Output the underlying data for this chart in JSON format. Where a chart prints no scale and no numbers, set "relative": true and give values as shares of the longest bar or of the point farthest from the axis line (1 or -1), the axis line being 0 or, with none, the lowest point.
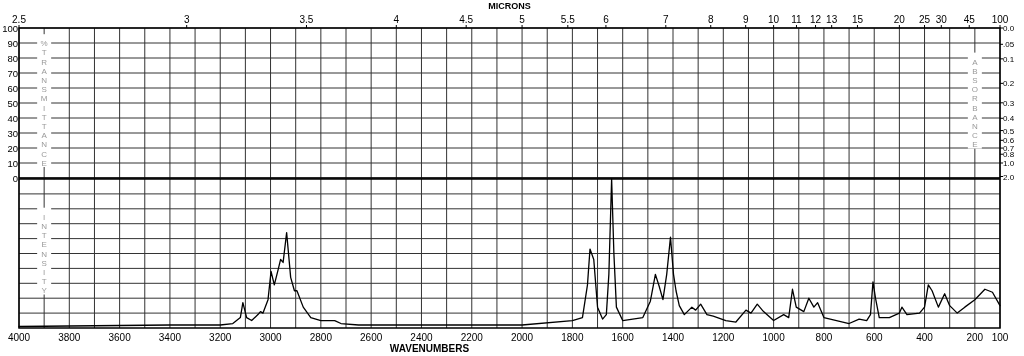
{
  "chart_data": [
    {
      "type": "line",
      "x2label": "MICRONS",
      "ylabel": "%TRANSMITTANCE",
      "y2label": "ABSORBANCE",
      "grid": true,
      "tick_labels": "y",
      "xlim": [
        4000,
        100
      ],
      "xticks": [
        {
          "value": 4000,
          "label": null
        },
        {
          "value": 3900,
          "label": null
        },
        {
          "value": 3800,
          "label": null
        },
        {
          "value": 3700,
          "label": null
        },
        {
          "value": 3600,
          "label": null
        },
        {
          "value": 3500,
          "label": null
        },
        {
          "value": 3400,
          "label": null
        },
        {
          "value": 3300,
          "label": null
        },
        {
          "value": 3200,
          "label": null
        },
        {
          "value": 3100,
          "label": null
        },
        {
          "value": 3000,
          "label": null
        },
        {
          "value": 2900,
          "label": null
        },
        {
          "value": 2800,
          "label": null
        },
        {
          "value": 2700,
          "label": null
        },
        {
          "value": 2600,
          "label": null
        },
        {
          "value": 2500,
          "label": null
        },
        {
          "value": 2400,
          "label": null
        },
        {
          "value": 2300,
          "label": null
        },
        {
          "value": 2200,
          "label": null
        },
        {
          "value": 2100,
          "label": null
        },
        {
          "value": 2000,
          "label": null
        },
        {
          "value": 1900,
          "label": null
        },
        {
          "value": 1800,
          "label": null
        },
        {
          "value": 1700,
          "label": null
        },
        {
          "value": 1600,
          "label": null
        },
        {
          "value": 1500,
          "label": null
        },
        {
          "value": 1400,
          "label": null
        },
        {
          "value": 1300,
          "label": null
        },
        {
          "value": 1200,
          "label": null
        },
        {
          "value": 1100,
          "label": null
        },
        {
          "value": 1000,
          "label": null
        },
        {
          "value": 900,
          "label": null
        },
        {
          "value": 800,
          "label": null
        },
        {
          "value": 700,
          "label": null
        },
        {
          "value": 600,
          "label": null
        },
        {
          "value": 500,
          "label": null
        },
        {
          "value": 400,
          "label": null
        },
        {
          "value": 300,
          "label": null
        },
        {
          "value": 200,
          "label": null
        },
        {
          "value": 100,
          "label": null
        }
      ],
      "annotations": [
        "2.5",
        "3",
        "3.5",
        "4",
        "4.5",
        "5",
        "5.5",
        "6",
        "7",
        "8",
        "9",
        "10",
        "11",
        "12",
        "13",
        "15",
        "20",
        "25",
        "30",
        "45",
        "100",
        "0.0",
        ".05",
        "0.1",
        "0.2",
        "0.3",
        "0.4",
        "0.5",
        "0.6",
        "0.7",
        "0.8",
        "1.0",
        "2.0"
      ],
      "ylim": [
        0,
        100
      ],
      "yticks": [
        0,
        10,
        20,
        30,
        40,
        50,
        60,
        70,
        80,
        90,
        100
      ]
    },
    {
      "type": "line",
      "relative": true,
      "xlabel": "WAVENUMBERS",
      "ylabel": "INTENSITY",
      "grid": true,
      "marker": "none",
      "xlim": [
        4000,
        100
      ],
      "xticks": [
        4000,
        {
          "value": 3900,
          "label": null
        },
        3800,
        {
          "value": 3700,
          "label": null
        },
        3600,
        {
          "value": 3500,
          "label": null
        },
        3400,
        {
          "value": 3300,
          "label": null
        },
        3200,
        {
          "value": 3100,
          "label": null
        },
        3000,
        {
          "value": 2900,
          "label": null
        },
        2800,
        {
          "value": 2700,
          "label": null
        },
        2600,
        {
          "value": 2500,
          "label": null
        },
        2400,
        {
          "value": 2300,
          "label": null
        },
        2200,
        {
          "value": 2100,
          "label": null
        },
        2000,
        {
          "value": 1900,
          "label": null
        },
        1800,
        {
          "value": 1700,
          "label": null
        },
        1600,
        {
          "value": 1500,
          "label": null
        },
        1400,
        {
          "value": 1300,
          "label": null
        },
        1200,
        {
          "value": 1100,
          "label": null
        },
        1000,
        {
          "value": 900,
          "label": null
        },
        800,
        {
          "value": 700,
          "label": null
        },
        600,
        {
          "value": 500,
          "label": null
        },
        400,
        {
          "value": 300,
          "label": null
        },
        200,
        100
      ],
      "series": [
        {
          "color": "#000000",
          "x": [
            4000,
            3400,
            3200,
            3150,
            3120,
            3110,
            3095,
            3075,
            3050,
            3040,
            3030,
            3010,
            2998,
            2985,
            2970,
            2960,
            2950,
            2936,
            2920,
            2905,
            2895,
            2870,
            2840,
            2800,
            2760,
            2745,
            2720,
            2650,
            2500,
            2400,
            2000,
            1800,
            1760,
            1740,
            1730,
            1715,
            1700,
            1680,
            1665,
            1655,
            1644,
            1635,
            1625,
            1600,
            1520,
            1490,
            1470,
            1455,
            1440,
            1425,
            1410,
            1398,
            1388,
            1375,
            1355,
            1325,
            1310,
            1290,
            1265,
            1240,
            1190,
            1150,
            1110,
            1090,
            1065,
            1040,
            1000,
            960,
            940,
            925,
            910,
            880,
            860,
            840,
            825,
            800,
            750,
            700,
            660,
            630,
            615,
            605,
            595,
            580,
            540,
            500,
            490,
            470,
            420,
            400,
            385,
            370,
            345,
            320,
            300,
            270,
            240,
            200,
            160,
            130,
            100
          ],
          "values": [
            0.01,
            0.02,
            0.02,
            0.03,
            0.07,
            0.17,
            0.07,
            0.05,
            0.09,
            0.11,
            0.1,
            0.19,
            0.38,
            0.29,
            0.39,
            0.46,
            0.44,
            0.64,
            0.34,
            0.25,
            0.25,
            0.14,
            0.07,
            0.05,
            0.05,
            0.05,
            0.03,
            0.02,
            0.02,
            0.02,
            0.02,
            0.05,
            0.07,
            0.29,
            0.53,
            0.46,
            0.14,
            0.06,
            0.09,
            0.36,
            1.0,
            0.5,
            0.14,
            0.05,
            0.07,
            0.18,
            0.36,
            0.28,
            0.19,
            0.36,
            0.61,
            0.36,
            0.25,
            0.15,
            0.09,
            0.14,
            0.12,
            0.16,
            0.09,
            0.08,
            0.05,
            0.04,
            0.12,
            0.1,
            0.16,
            0.11,
            0.05,
            0.09,
            0.07,
            0.26,
            0.14,
            0.11,
            0.2,
            0.14,
            0.17,
            0.07,
            0.05,
            0.03,
            0.06,
            0.05,
            0.09,
            0.31,
            0.2,
            0.07,
            0.07,
            0.1,
            0.14,
            0.09,
            0.1,
            0.14,
            0.29,
            0.25,
            0.14,
            0.23,
            0.15,
            0.1,
            0.14,
            0.19,
            0.26,
            0.24,
            0.15
          ]
        }
      ]
    }
  ]
}
